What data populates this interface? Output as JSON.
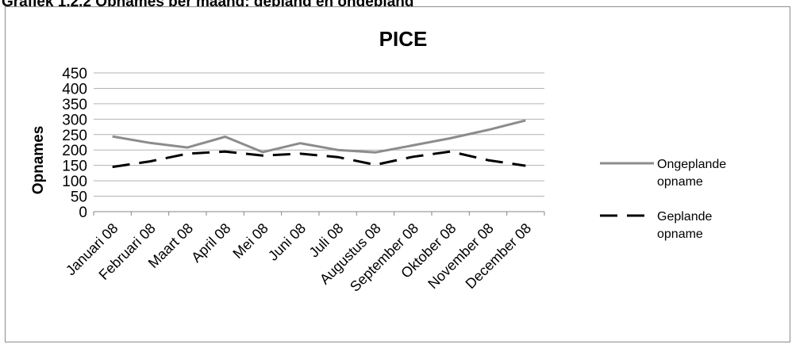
{
  "caption": "Grafiek 1.2.2 Opnames per maand: gepland en ongepland",
  "chart_data": {
    "type": "line",
    "title": "PICE",
    "xlabel": "",
    "ylabel": "Opnames",
    "ylim": [
      0,
      450
    ],
    "yticks": [
      "0",
      "50",
      "100",
      "150",
      "200",
      "250",
      "300",
      "350",
      "400",
      "450"
    ],
    "grid": true,
    "legend_position": "right",
    "categories": [
      "Januari 08",
      "Februari 08",
      "Maart 08",
      "April 08",
      "Mei 08",
      "Juni 08",
      "Juli 08",
      "Augustus 08",
      "September 08",
      "Oktober 08",
      "November 08",
      "December 08"
    ],
    "series": [
      {
        "name_lines": [
          "Ongeplande",
          "opname"
        ],
        "color": "#8c8c8c",
        "style": "solid",
        "values": [
          244,
          223,
          208,
          243,
          193,
          222,
          200,
          192,
          215,
          238,
          265,
          296
        ]
      },
      {
        "name_lines": [
          "Geplande",
          "opname"
        ],
        "color": "#000000",
        "style": "dashed",
        "values": [
          145,
          163,
          188,
          195,
          182,
          188,
          177,
          152,
          178,
          195,
          167,
          149
        ]
      }
    ]
  }
}
